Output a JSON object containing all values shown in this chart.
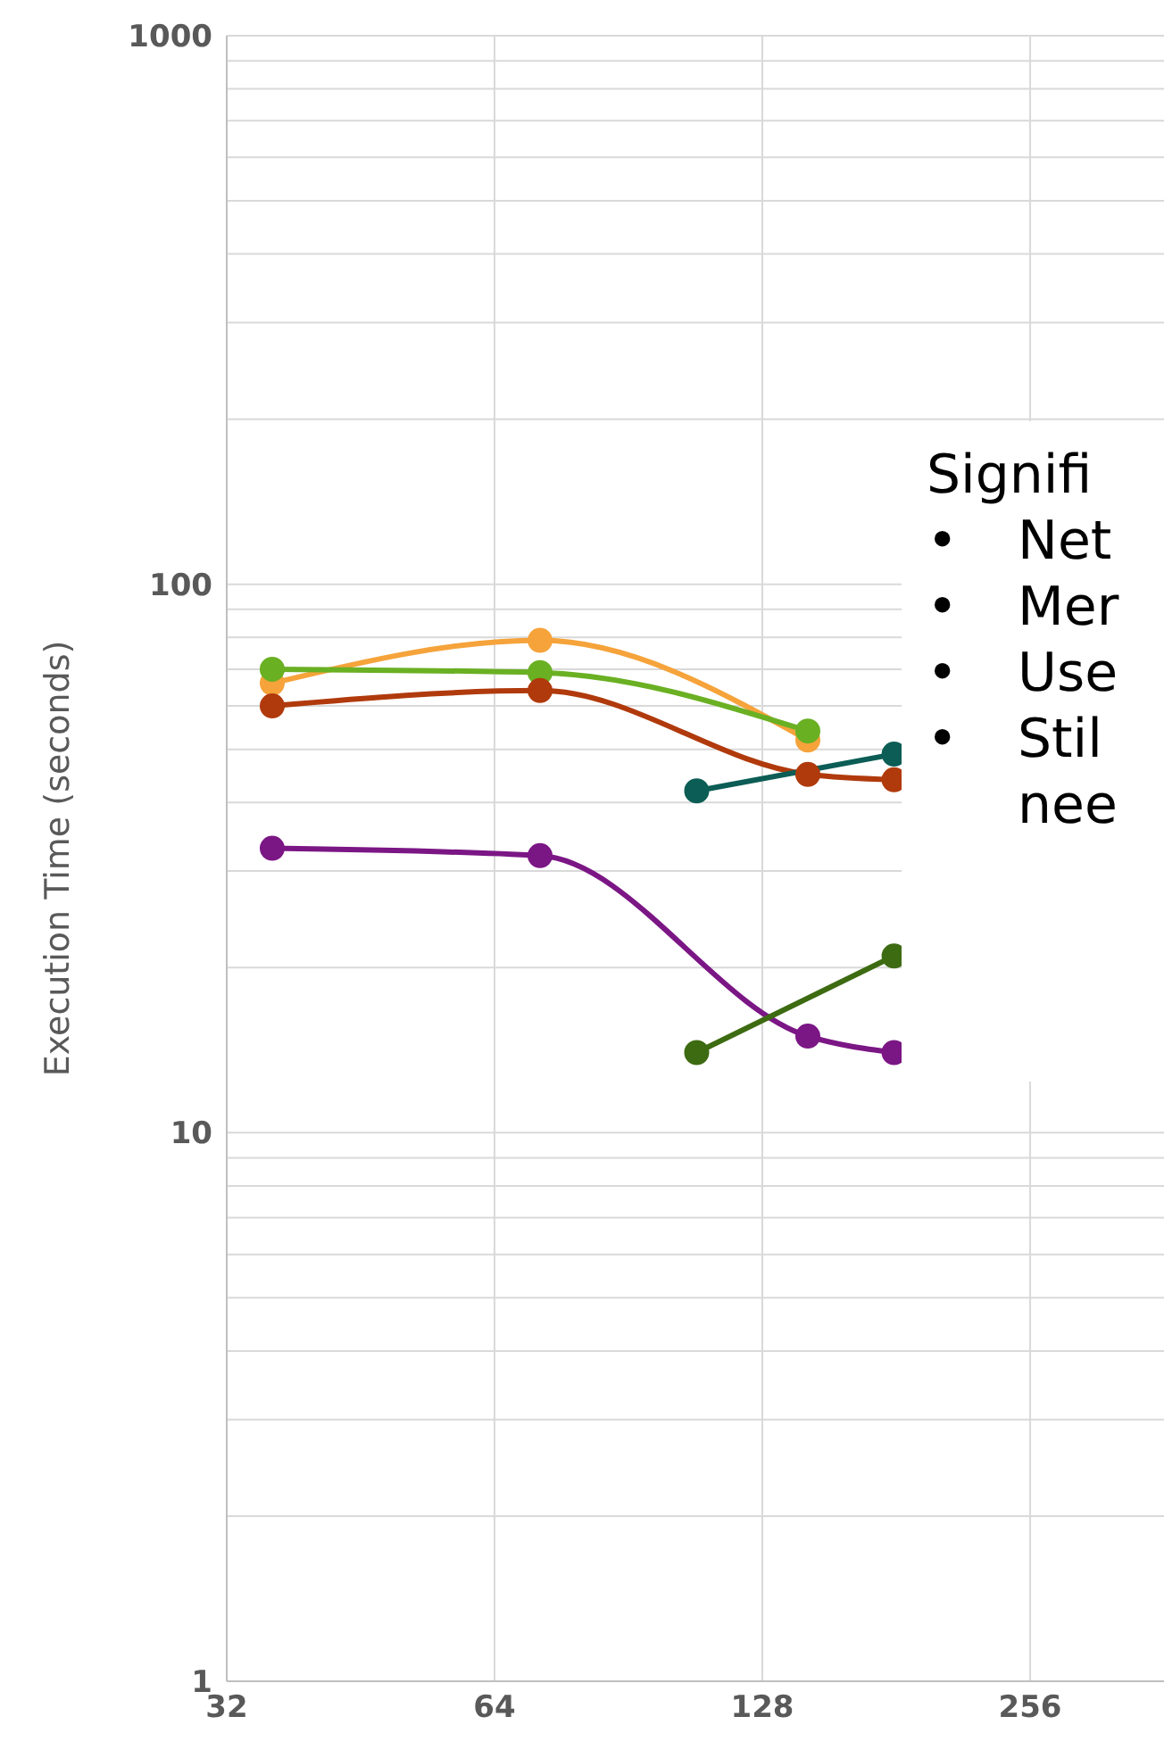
{
  "chart_data": {
    "type": "line",
    "ylabel": "Execution Time (seconds)",
    "log": "xy",
    "xlim": [
      32,
      362
    ],
    "xticks": [
      32,
      64,
      128,
      256
    ],
    "ylim": [
      1,
      1000
    ],
    "yticks": [
      1,
      10,
      100,
      1000
    ],
    "grid": true,
    "legend": false,
    "marker": "circle",
    "line_style": "solid",
    "series": [
      {
        "color": "#f5a33a",
        "x": [
          36,
          72,
          144
        ],
        "values": [
          66,
          79,
          52
        ]
      },
      {
        "color": "#6ab023",
        "x": [
          36,
          72,
          144
        ],
        "values": [
          70,
          69,
          54
        ]
      },
      {
        "color": "#b03a0c",
        "x": [
          36,
          72,
          144,
          180
        ],
        "values": [
          60,
          64,
          45,
          44
        ]
      },
      {
        "color": "#0b5d55",
        "x": [
          108,
          180
        ],
        "values": [
          42,
          49
        ]
      },
      {
        "color": "#7b1685",
        "x": [
          36,
          72,
          144,
          180
        ],
        "values": [
          33,
          32,
          15,
          14
        ]
      },
      {
        "color": "#3d6b12",
        "x": [
          108,
          180
        ],
        "values": [
          14,
          21
        ]
      }
    ],
    "annotations": [
      "Signifi\n• Net\n• Mer\n• Use\n• Stil\nnee"
    ]
  }
}
